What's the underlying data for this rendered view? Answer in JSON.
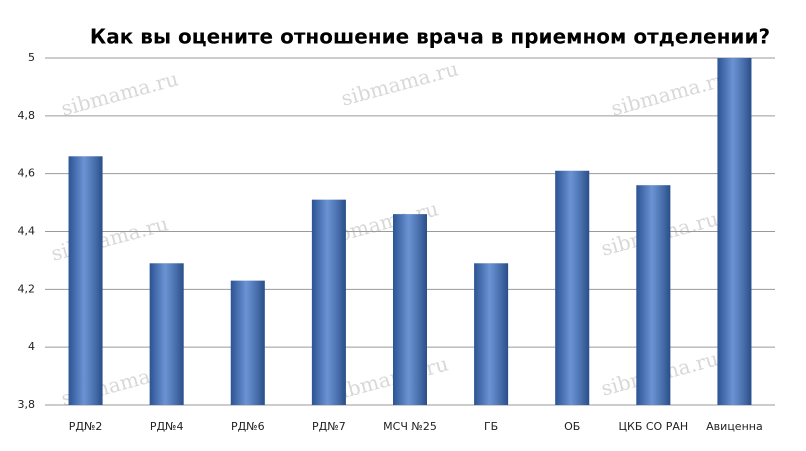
{
  "chart_data": {
    "type": "bar",
    "title": "Как вы оцените отношение врача в приемном отделении?",
    "categories": [
      "РД№2",
      "РД№4",
      "РД№6",
      "РД№7",
      "МСЧ №25",
      "ГБ",
      "ОБ",
      "ЦКБ СО РАН",
      "Авиценна"
    ],
    "values": [
      4.66,
      4.29,
      4.23,
      4.51,
      4.46,
      4.29,
      4.61,
      4.56,
      5.0
    ],
    "color": "#3a6fc4",
    "ylim": [
      3.8,
      5
    ],
    "yticks": [
      {
        "value": 3.8,
        "label": "3,8"
      },
      4,
      {
        "value": 4.2,
        "label": "4,2"
      },
      {
        "value": 4.4,
        "label": "4,4"
      },
      {
        "value": 4.6,
        "label": "4,6"
      },
      {
        "value": 4.8,
        "label": "4,8"
      },
      5
    ],
    "grid": true,
    "watermark": "sibmama.ru"
  }
}
